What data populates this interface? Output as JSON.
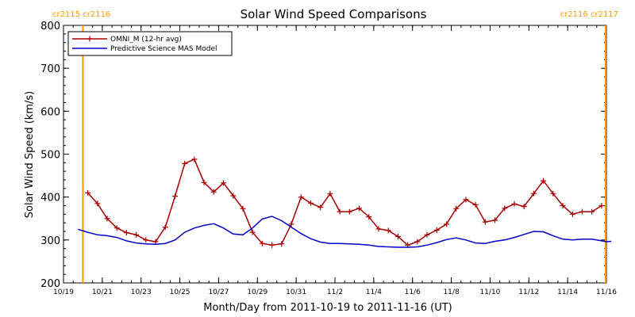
{
  "chart_data": {
    "type": "line",
    "title": "Solar Wind Speed Comparisons",
    "xlabel": "Month/Day from 2011-10-19 to 2011-11-16 (UT)",
    "ylabel": "Solar Wind Speed (km/s)",
    "xlim": [
      "2011-10-19",
      "2011-11-16"
    ],
    "ylim": [
      200,
      800
    ],
    "grid": false,
    "legend_position": "top-left",
    "x_ticks": [
      {
        "date": "2011-10-19",
        "label": "10/19"
      },
      {
        "date": "2011-10-21",
        "label": "10/21"
      },
      {
        "date": "2011-10-23",
        "label": "10/23"
      },
      {
        "date": "2011-10-25",
        "label": "10/25"
      },
      {
        "date": "2011-10-27",
        "label": "10/27"
      },
      {
        "date": "2011-10-29",
        "label": "10/29"
      },
      {
        "date": "2011-10-31",
        "label": "10/31"
      },
      {
        "date": "2011-11-02",
        "label": "11/2"
      },
      {
        "date": "2011-11-04",
        "label": "11/4"
      },
      {
        "date": "2011-11-06",
        "label": "11/6"
      },
      {
        "date": "2011-11-08",
        "label": "11/8"
      },
      {
        "date": "2011-11-10",
        "label": "11/10"
      },
      {
        "date": "2011-11-12",
        "label": "11/12"
      },
      {
        "date": "2011-11-14",
        "label": "11/14"
      },
      {
        "date": "2011-11-16",
        "label": "11/16"
      }
    ],
    "y_ticks": [
      {
        "value": 200,
        "label": "200"
      },
      {
        "value": 300,
        "label": "300"
      },
      {
        "value": 400,
        "label": "400"
      },
      {
        "value": 500,
        "label": "500"
      },
      {
        "value": 600,
        "label": "600"
      },
      {
        "value": 700,
        "label": "700"
      },
      {
        "value": 800,
        "label": "800"
      }
    ],
    "vertical_markers": [
      {
        "date": "2011-10-20 00:00",
        "label": "cr2115 cr2116",
        "color": "#ff9900"
      },
      {
        "date": "2011-11-15 23:00",
        "label": "cr2116 cr2117",
        "color": "#ff9900"
      }
    ],
    "series": [
      {
        "name": "OMNI_M (12-hr avg)",
        "color": "#aa0000",
        "marker": "plus",
        "x": [
          "2011-10-20 06:00",
          "2011-10-20 18:00",
          "2011-10-21 06:00",
          "2011-10-21 18:00",
          "2011-10-22 06:00",
          "2011-10-22 18:00",
          "2011-10-23 06:00",
          "2011-10-23 18:00",
          "2011-10-24 06:00",
          "2011-10-24 18:00",
          "2011-10-25 06:00",
          "2011-10-25 18:00",
          "2011-10-26 06:00",
          "2011-10-26 18:00",
          "2011-10-27 06:00",
          "2011-10-27 18:00",
          "2011-10-28 06:00",
          "2011-10-28 18:00",
          "2011-10-29 06:00",
          "2011-10-29 18:00",
          "2011-10-30 06:00",
          "2011-10-30 18:00",
          "2011-10-31 06:00",
          "2011-10-31 18:00",
          "2011-11-01 06:00",
          "2011-11-01 18:00",
          "2011-11-02 06:00",
          "2011-11-02 18:00",
          "2011-11-03 06:00",
          "2011-11-03 18:00",
          "2011-11-04 06:00",
          "2011-11-04 18:00",
          "2011-11-05 06:00",
          "2011-11-05 18:00",
          "2011-11-06 06:00",
          "2011-11-06 18:00",
          "2011-11-07 06:00",
          "2011-11-07 18:00",
          "2011-11-08 06:00",
          "2011-11-08 18:00",
          "2011-11-09 06:00",
          "2011-11-09 18:00",
          "2011-11-10 06:00",
          "2011-11-10 18:00",
          "2011-11-11 06:00",
          "2011-11-11 18:00",
          "2011-11-12 06:00",
          "2011-11-12 18:00",
          "2011-11-13 06:00",
          "2011-11-13 18:00",
          "2011-11-14 06:00",
          "2011-11-14 18:00",
          "2011-11-15 06:00",
          "2011-11-15 18:00"
        ],
        "values": [
          410,
          385,
          350,
          328,
          317,
          312,
          300,
          296,
          330,
          402,
          478,
          488,
          434,
          412,
          433,
          403,
          373,
          318,
          292,
          288,
          291,
          337,
          400,
          386,
          376,
          408,
          366,
          366,
          374,
          354,
          326,
          322,
          308,
          288,
          296,
          312,
          323,
          337,
          373,
          394,
          382,
          342,
          346,
          374,
          384,
          378,
          408,
          438,
          408,
          380,
          360,
          366,
          366,
          380
        ]
      },
      {
        "name": "Predictive Science MAS Model",
        "color": "#0000cc",
        "marker": "none",
        "x": [
          "2011-10-19 18:00",
          "2011-10-20 06:00",
          "2011-10-20 18:00",
          "2011-10-21 06:00",
          "2011-10-21 18:00",
          "2011-10-22 06:00",
          "2011-10-22 18:00",
          "2011-10-23 06:00",
          "2011-10-23 18:00",
          "2011-10-24 06:00",
          "2011-10-24 18:00",
          "2011-10-25 06:00",
          "2011-10-25 18:00",
          "2011-10-26 06:00",
          "2011-10-26 18:00",
          "2011-10-27 06:00",
          "2011-10-27 18:00",
          "2011-10-28 06:00",
          "2011-10-28 18:00",
          "2011-10-29 06:00",
          "2011-10-29 18:00",
          "2011-10-30 06:00",
          "2011-10-30 18:00",
          "2011-10-31 06:00",
          "2011-10-31 18:00",
          "2011-11-01 06:00",
          "2011-11-01 18:00",
          "2011-11-02 06:00",
          "2011-11-02 18:00",
          "2011-11-03 06:00",
          "2011-11-03 18:00",
          "2011-11-04 06:00",
          "2011-11-04 18:00",
          "2011-11-05 06:00",
          "2011-11-05 18:00",
          "2011-11-06 06:00",
          "2011-11-06 18:00",
          "2011-11-07 06:00",
          "2011-11-07 18:00",
          "2011-11-08 06:00",
          "2011-11-08 18:00",
          "2011-11-09 06:00",
          "2011-11-09 18:00",
          "2011-11-10 06:00",
          "2011-11-10 18:00",
          "2011-11-11 06:00",
          "2011-11-11 18:00",
          "2011-11-12 06:00",
          "2011-11-12 18:00",
          "2011-11-13 06:00",
          "2011-11-13 18:00",
          "2011-11-14 06:00",
          "2011-11-14 18:00",
          "2011-11-15 06:00",
          "2011-11-15 18:00",
          "2011-11-16 00:00",
          "2011-11-16 06:00"
        ],
        "values": [
          325,
          318,
          312,
          310,
          306,
          298,
          293,
          291,
          290,
          292,
          300,
          318,
          328,
          334,
          338,
          328,
          314,
          312,
          328,
          349,
          355,
          345,
          330,
          315,
          303,
          295,
          292,
          292,
          291,
          290,
          288,
          285,
          284,
          283,
          283,
          284,
          288,
          294,
          301,
          305,
          300,
          293,
          292,
          297,
          300,
          306,
          313,
          320,
          319,
          310,
          302,
          300,
          302,
          302,
          298,
          296,
          297
        ]
      }
    ]
  }
}
